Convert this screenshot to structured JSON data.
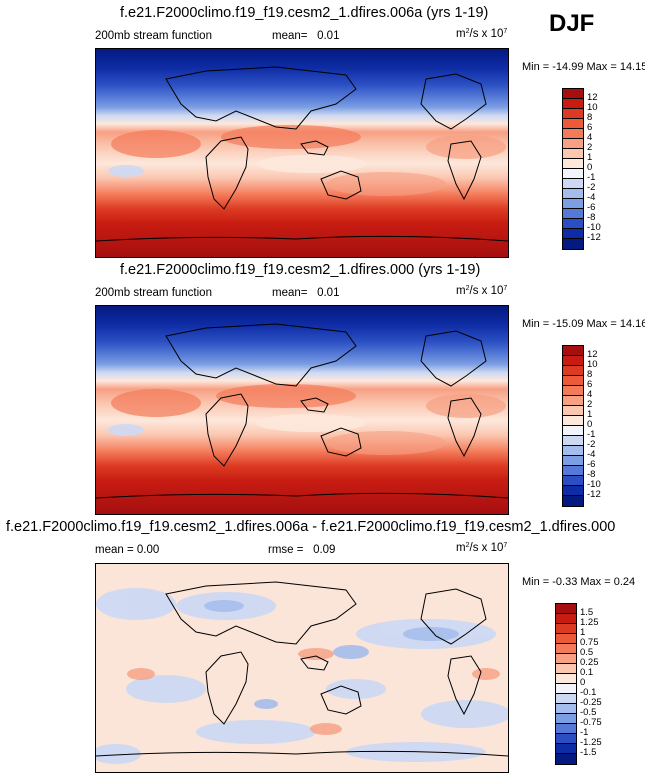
{
  "season": "DJF",
  "panels": [
    {
      "title": "f.e21.F2000climo.f19_f19.cesm2_1.dfires.006a (yrs 1-19)",
      "left_label": "200mb stream function",
      "stat_label": "mean=",
      "stat_value": "0.01",
      "units_base": "m",
      "units_exp": "2",
      "units_mid": "/s x 10",
      "units_exp2": "7",
      "minmax": "Min = -14.99 Max =  14.15"
    },
    {
      "title": "f.e21.F2000climo.f19_f19.cesm2_1.dfires.000 (yrs 1-19)",
      "left_label": "200mb stream function",
      "stat_label": "mean=",
      "stat_value": "0.01",
      "units_base": "m",
      "units_exp": "2",
      "units_mid": "/s x 10",
      "units_exp2": "7",
      "minmax": "Min = -15.09 Max =  14.16"
    },
    {
      "title": "f.e21.F2000climo.f19_f19.cesm2_1.dfires.006a - f.e21.F2000climo.f19_f19.cesm2_1.dfires.000",
      "left_label": "mean =   0.00",
      "stat_label": "rmse =",
      "stat_value": "0.09",
      "units_base": "m",
      "units_exp": "2",
      "units_mid": "/s x 10",
      "units_exp2": "7",
      "minmax": "Min = -0.33 Max =  0.24"
    }
  ],
  "chart_data": [
    {
      "type": "heatmap",
      "title": "f.e21.F2000climo.f19_f19.cesm2_1.dfires.006a (yrs 1-19)",
      "variable": "200mb stream function",
      "mean": 0.01,
      "min": -14.99,
      "max": 14.15,
      "colorbar_levels": [
        "12",
        "10",
        "8",
        "6",
        "4",
        "2",
        "1",
        "0",
        "-1",
        "-2",
        "-4",
        "-6",
        "-8",
        "-10",
        "-12"
      ],
      "colorbar_colors": [
        "#a50f0f",
        "#c81c12",
        "#dc3a22",
        "#ec5a3a",
        "#f47b5a",
        "#f7a083",
        "#fbc7b1",
        "#fde8dc",
        "#f1f4fb",
        "#cdd9f3",
        "#a5bdec",
        "#7c9ee3",
        "#5479d6",
        "#2b4fc3",
        "#0e2ca5",
        "#051a80"
      ],
      "zonal_profile_lat": [
        90,
        60,
        45,
        30,
        15,
        0,
        -15,
        -30,
        -45,
        -60,
        -90
      ],
      "zonal_profile_value": [
        -13,
        -12,
        -9,
        -3,
        4,
        3,
        1,
        3,
        8,
        13,
        14
      ]
    },
    {
      "type": "heatmap",
      "title": "f.e21.F2000climo.f19_f19.cesm2_1.dfires.000 (yrs 1-19)",
      "variable": "200mb stream function",
      "mean": 0.01,
      "min": -15.09,
      "max": 14.16,
      "colorbar_levels": [
        "12",
        "10",
        "8",
        "6",
        "4",
        "2",
        "1",
        "0",
        "-1",
        "-2",
        "-4",
        "-6",
        "-8",
        "-10",
        "-12"
      ],
      "colorbar_colors": [
        "#a50f0f",
        "#c81c12",
        "#dc3a22",
        "#ec5a3a",
        "#f47b5a",
        "#f7a083",
        "#fbc7b1",
        "#fde8dc",
        "#f1f4fb",
        "#cdd9f3",
        "#a5bdec",
        "#7c9ee3",
        "#5479d6",
        "#2b4fc3",
        "#0e2ca5",
        "#051a80"
      ],
      "zonal_profile_lat": [
        90,
        60,
        45,
        30,
        15,
        0,
        -15,
        -30,
        -45,
        -60,
        -90
      ],
      "zonal_profile_value": [
        -13,
        -12,
        -9,
        -3,
        4,
        3,
        1,
        3,
        8,
        13,
        14
      ]
    },
    {
      "type": "heatmap",
      "title": "f.e21.F2000climo.f19_f19.cesm2_1.dfires.006a - f.e21.F2000climo.f19_f19.cesm2_1.dfires.000",
      "mean": 0.0,
      "rmse": 0.09,
      "min": -0.33,
      "max": 0.24,
      "colorbar_levels": [
        "1.5",
        "1.25",
        "1",
        "0.75",
        "0.5",
        "0.25",
        "0.1",
        "0",
        "-0.1",
        "-0.25",
        "-0.5",
        "-0.75",
        "-1",
        "-1.25",
        "-1.5"
      ],
      "colorbar_colors": [
        "#a50f0f",
        "#c81c12",
        "#dc3a22",
        "#ec5a3a",
        "#f47b5a",
        "#f7a083",
        "#fbc7b1",
        "#fde8dc",
        "#f1f4fb",
        "#cdd9f3",
        "#a5bdec",
        "#7c9ee3",
        "#5479d6",
        "#2b4fc3",
        "#0e2ca5",
        "#051a80"
      ]
    }
  ]
}
